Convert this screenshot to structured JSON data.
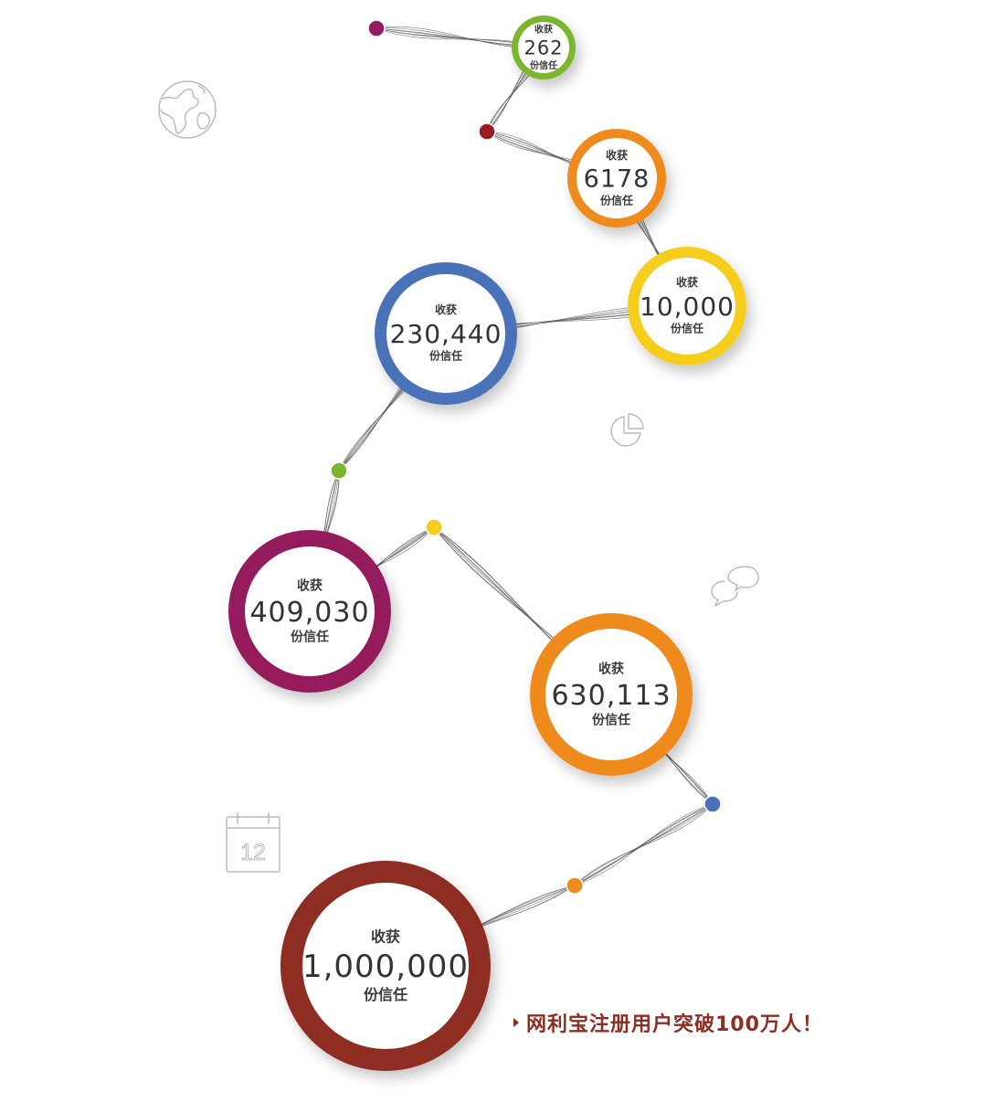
{
  "milestones": [
    {
      "label_top": "收获",
      "value": "262",
      "label_bottom": "份信任",
      "color": "#7cb52e"
    },
    {
      "label_top": "收获",
      "value": "6178",
      "label_bottom": "份信任",
      "color": "#ef8a1c"
    },
    {
      "label_top": "收获",
      "value": "10,000",
      "label_bottom": "份信任",
      "color": "#f5cd1a"
    },
    {
      "label_top": "收获",
      "value": "230,440",
      "label_bottom": "份信任",
      "color": "#4a72b8"
    },
    {
      "label_top": "收获",
      "value": "409,030",
      "label_bottom": "份信任",
      "color": "#951c5c"
    },
    {
      "label_top": "收获",
      "value": "630,113",
      "label_bottom": "份信任",
      "color": "#ef8a1c"
    },
    {
      "label_top": "收获",
      "value": "1,000,000",
      "label_bottom": "份信任",
      "color": "#8e2d22"
    }
  ],
  "dots": [
    {
      "color": "#951c5c"
    },
    {
      "color": "#9b1b22"
    },
    {
      "color": "#7cb52e"
    },
    {
      "color": "#f5cd1a"
    },
    {
      "color": "#4a72b8"
    },
    {
      "color": "#ef8a1c"
    }
  ],
  "icons": [
    {
      "name": "globe-icon"
    },
    {
      "name": "pie-chart-icon"
    },
    {
      "name": "chat-bubbles-icon"
    },
    {
      "name": "calendar-icon",
      "text": "12"
    }
  ],
  "caption": {
    "text": "网利宝注册用户突破100万人！",
    "color": "#8e2d22"
  }
}
